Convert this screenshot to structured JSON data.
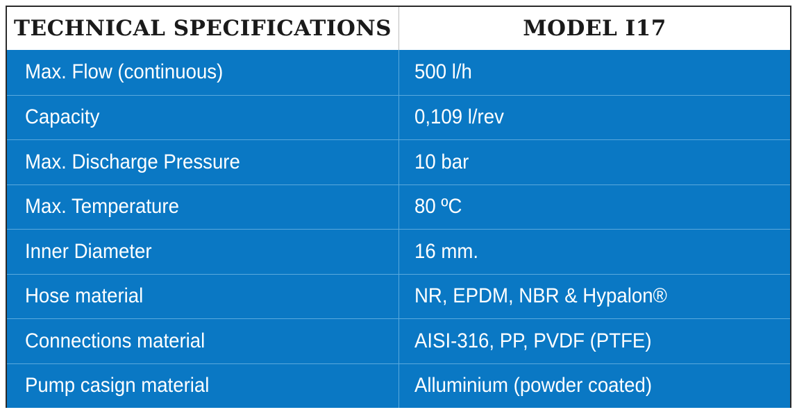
{
  "table": {
    "header": {
      "col1": "TECHNICAL SPECIFICATIONS",
      "col2": "MODEL I17"
    },
    "rows": [
      {
        "label": "Max. Flow (continuous)",
        "value": "500 l/h"
      },
      {
        "label": "Capacity",
        "value": "0,109 l/rev"
      },
      {
        "label": "Max. Discharge Pressure",
        "value": "10 bar"
      },
      {
        "label": "Max. Temperature",
        "value": "80 ºC"
      },
      {
        "label": "Inner Diameter",
        "value": "16 mm."
      },
      {
        "label": "Hose material",
        "value": "NR, EPDM, NBR & Hypalon®"
      },
      {
        "label": "Connections material",
        "value": "AISI-316, PP, PVDF (PTFE)"
      },
      {
        "label": "Pump casign material",
        "value": "Alluminium (powder coated)"
      }
    ],
    "colors": {
      "row_background": "#0a78c4",
      "header_background": "#ffffff",
      "header_text": "#1a1a1a",
      "row_text": "#ffffff"
    }
  }
}
